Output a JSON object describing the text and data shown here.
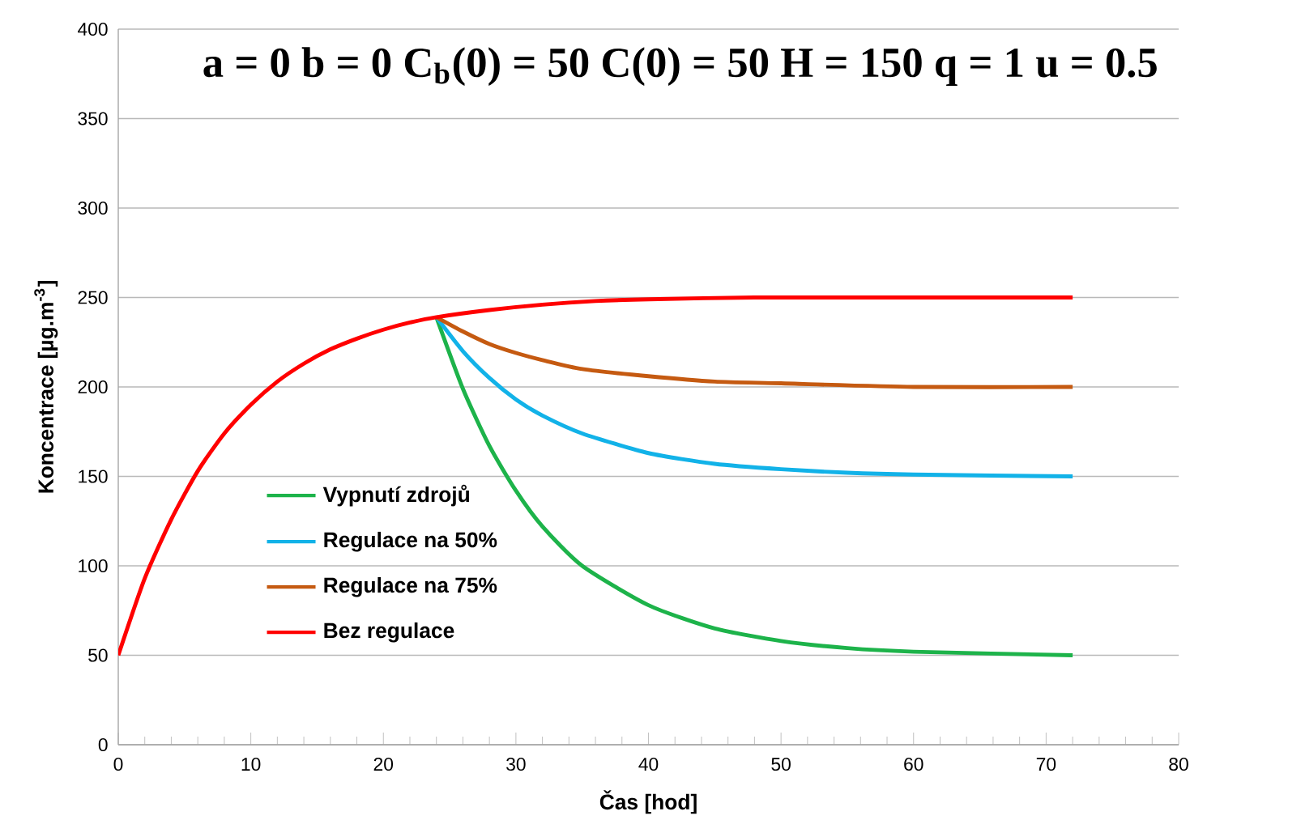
{
  "chart_data": {
    "type": "line",
    "title": "a = 0  b = 0  C$_{b}$(0) = 50  C(0) = 50  H = 150  q = 1  u = 0.5",
    "xlabel": "Čas [hod]",
    "ylabel": "Koncentrace [µg.m$^{-3}$]",
    "xlim": [
      0,
      80
    ],
    "ylim": [
      0,
      400
    ],
    "xticks": [
      0,
      10,
      20,
      30,
      40,
      50,
      60,
      70,
      80
    ],
    "yticks": [
      0,
      50,
      100,
      150,
      200,
      250,
      300,
      350,
      400
    ],
    "grid": "y",
    "legend": "left",
    "marker": "none",
    "line_style": "solid",
    "series": [
      {
        "name": "Vypnutí zdrojů",
        "color": "#1db34a",
        "x": [
          24,
          26,
          28,
          30,
          32,
          35,
          40,
          45,
          50,
          55,
          60,
          72
        ],
        "values": [
          239,
          199,
          167,
          142,
          122,
          100,
          78,
          65,
          58,
          54,
          52,
          50
        ]
      },
      {
        "name": "Regulace na 50%",
        "color": "#12b2e8",
        "x": [
          24,
          26,
          28,
          30,
          32,
          35,
          40,
          45,
          50,
          55,
          60,
          72
        ],
        "values": [
          239,
          220,
          205,
          193,
          184,
          174,
          163,
          157,
          154,
          152,
          151,
          150
        ]
      },
      {
        "name": "Regulace na 75%",
        "color": "#c55a11",
        "x": [
          24,
          26,
          28,
          30,
          32,
          35,
          40,
          45,
          50,
          60,
          72
        ],
        "values": [
          239,
          231,
          224,
          219,
          215,
          210,
          206,
          203,
          202,
          200,
          200
        ]
      },
      {
        "name": "Bez regulace",
        "color": "#ff0000",
        "x": [
          0,
          2,
          4,
          6,
          8,
          10,
          12,
          14,
          16,
          18,
          20,
          22,
          24,
          28,
          32,
          36,
          40,
          48,
          56,
          72
        ],
        "values": [
          50,
          93,
          126,
          153,
          174,
          190,
          203,
          213,
          221,
          227,
          232,
          236,
          239,
          243,
          246,
          248,
          249,
          250,
          250,
          250
        ]
      }
    ]
  }
}
